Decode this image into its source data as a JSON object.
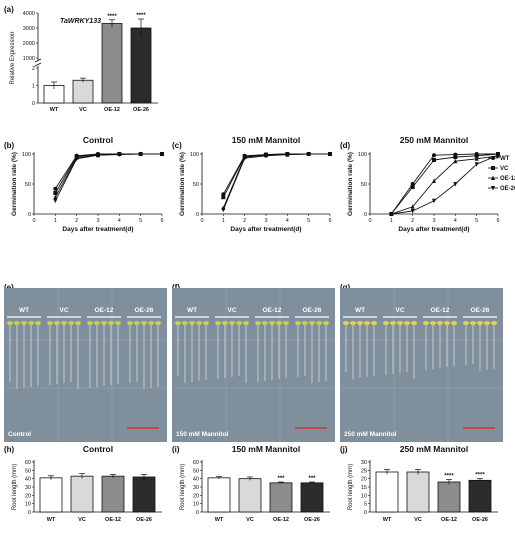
{
  "panel_letters": {
    "a": "(a)",
    "b": "(b)",
    "c": "(c)",
    "d": "(d)",
    "e": "(e)",
    "f": "(f)",
    "g": "(g)",
    "h": "(h)",
    "i": "(i)",
    "j": "(j)"
  },
  "groups": [
    "WT",
    "VC",
    "OE-12",
    "OE-26"
  ],
  "bar_colors": {
    "WT": "#ffffff",
    "VC": "#d9d9d9",
    "OE-12": "#8c8c8c",
    "OE-26": "#2b2b2b"
  },
  "photo_colors": {
    "background": "#7f8f9b",
    "plant_light": "#c9d04a",
    "plant_yellow": "#e4d24a",
    "scale_bar": "#e02020"
  },
  "photo_labels": {
    "e": "Control",
    "f": "150 mM Mannitol",
    "g": "250 mM Mannitol"
  },
  "chart_data": [
    {
      "id": "a",
      "type": "bar",
      "gene": "TaWRKY133",
      "ylabel": "Relative Expression",
      "categories": [
        "WT",
        "VC",
        "OE-12",
        "OE-26"
      ],
      "values": [
        1.0,
        1.3,
        3300,
        3000
      ],
      "errors": [
        0.2,
        0.12,
        250,
        600
      ],
      "significance": [
        "",
        "",
        "****",
        "****"
      ],
      "ytick_labels": [
        "0",
        "1",
        "2",
        "1000",
        "2000",
        "3000",
        "4000"
      ]
    },
    {
      "id": "b",
      "type": "line",
      "title": "Control",
      "xlabel": "Days after treatment(d)",
      "ylabel": "Germination rate (%)",
      "xlim": [
        0,
        6
      ],
      "ylim": [
        0,
        100
      ],
      "xticks": [
        0,
        1,
        2,
        3,
        4,
        5,
        6
      ],
      "yticks": [
        0,
        50,
        100
      ],
      "series": [
        {
          "name": "WT",
          "marker": "circle",
          "x": [
            1,
            2,
            3,
            4,
            5,
            6
          ],
          "y": [
            42,
            97,
            100,
            100,
            100,
            100
          ]
        },
        {
          "name": "VC",
          "marker": "square",
          "x": [
            1,
            2,
            3,
            4,
            5,
            6
          ],
          "y": [
            35,
            96,
            99,
            100,
            100,
            100
          ]
        },
        {
          "name": "OE-12",
          "marker": "triangle",
          "x": [
            1,
            2,
            3,
            4,
            5,
            6
          ],
          "y": [
            28,
            94,
            98,
            100,
            100,
            100
          ]
        },
        {
          "name": "OE-26",
          "marker": "triangle-down",
          "x": [
            1,
            2,
            3,
            4,
            5,
            6
          ],
          "y": [
            22,
            92,
            98,
            99,
            100,
            100
          ]
        }
      ]
    },
    {
      "id": "c",
      "type": "line",
      "title": "150 mM Mannitol",
      "xlabel": "Days after treatment(d)",
      "ylabel": "Germination rate (%)",
      "xlim": [
        0,
        6
      ],
      "ylim": [
        0,
        100
      ],
      "xticks": [
        0,
        1,
        2,
        3,
        4,
        5,
        6
      ],
      "yticks": [
        0,
        50,
        100
      ],
      "series": [
        {
          "name": "WT",
          "marker": "circle",
          "x": [
            1,
            2,
            3,
            4,
            5,
            6
          ],
          "y": [
            33,
            97,
            99,
            100,
            100,
            100
          ]
        },
        {
          "name": "VC",
          "marker": "square",
          "x": [
            1,
            2,
            3,
            4,
            5,
            6
          ],
          "y": [
            28,
            96,
            99,
            100,
            100,
            100
          ]
        },
        {
          "name": "OE-12",
          "marker": "triangle",
          "x": [
            1,
            2,
            3,
            4,
            5,
            6
          ],
          "y": [
            10,
            95,
            98,
            99,
            100,
            100
          ]
        },
        {
          "name": "OE-26",
          "marker": "triangle-down",
          "x": [
            1,
            2,
            3,
            4,
            5,
            6
          ],
          "y": [
            7,
            93,
            97,
            99,
            100,
            100
          ]
        }
      ]
    },
    {
      "id": "d",
      "type": "line",
      "title": "250 mM Mannitol",
      "xlabel": "Days after treatment(d)",
      "ylabel": "Germination rate (%)",
      "xlim": [
        0,
        6
      ],
      "ylim": [
        0,
        100
      ],
      "xticks": [
        0,
        1,
        2,
        3,
        4,
        5,
        6
      ],
      "yticks": [
        0,
        50,
        100
      ],
      "series": [
        {
          "name": "WT",
          "marker": "circle",
          "x": [
            1,
            2,
            3,
            4,
            5,
            6
          ],
          "y": [
            0,
            50,
            98,
            99,
            100,
            100
          ]
        },
        {
          "name": "VC",
          "marker": "square",
          "x": [
            1,
            2,
            3,
            4,
            5,
            6
          ],
          "y": [
            0,
            45,
            90,
            95,
            97,
            100
          ]
        },
        {
          "name": "OE-12",
          "marker": "triangle",
          "x": [
            1,
            2,
            3,
            4,
            5,
            6
          ],
          "y": [
            0,
            12,
            55,
            88,
            92,
            97
          ]
        },
        {
          "name": "OE-26",
          "marker": "triangle-down",
          "x": [
            1,
            2,
            3,
            4,
            5,
            6
          ],
          "y": [
            0,
            5,
            22,
            50,
            83,
            98
          ]
        }
      ],
      "legend": "right"
    },
    {
      "id": "h",
      "type": "bar",
      "title": "Control",
      "ylabel": "Root length (mm)",
      "categories": [
        "WT",
        "VC",
        "OE-12",
        "OE-26"
      ],
      "values": [
        41,
        43,
        43,
        42
      ],
      "errors": [
        2.5,
        3,
        2,
        3
      ],
      "significance": [
        "",
        "",
        "",
        ""
      ],
      "ylim": [
        0,
        60
      ],
      "yticks": [
        0,
        10,
        20,
        30,
        40,
        50,
        60
      ]
    },
    {
      "id": "i",
      "type": "bar",
      "title": "150 mM Mannitol",
      "ylabel": "Root length (mm)",
      "categories": [
        "WT",
        "VC",
        "OE-12",
        "OE-26"
      ],
      "values": [
        41,
        40,
        35,
        35
      ],
      "errors": [
        1.5,
        2,
        1,
        1
      ],
      "significance": [
        "",
        "",
        "***",
        "***"
      ],
      "ylim": [
        0,
        60
      ],
      "yticks": [
        0,
        10,
        20,
        30,
        40,
        50,
        60
      ]
    },
    {
      "id": "j",
      "type": "bar",
      "title": "250 mM Mannitol",
      "ylabel": "Root length (mm)",
      "categories": [
        "WT",
        "VC",
        "OE-12",
        "OE-26"
      ],
      "values": [
        24,
        24,
        18,
        19
      ],
      "errors": [
        1.5,
        1.5,
        1.5,
        1
      ],
      "significance": [
        "",
        "",
        "****",
        "****"
      ],
      "ylim": [
        0,
        30
      ],
      "yticks": [
        0,
        5,
        10,
        15,
        20,
        25,
        30
      ]
    }
  ]
}
